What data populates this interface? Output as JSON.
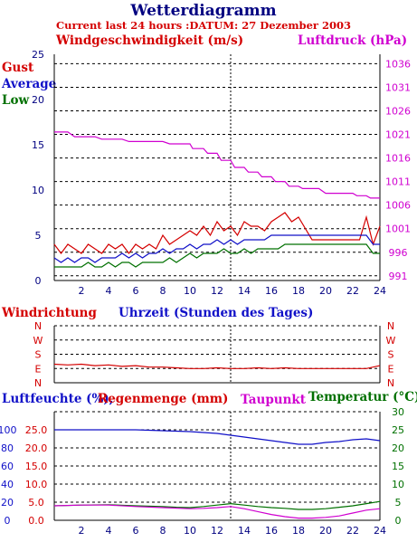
{
  "header": {
    "title": "Wetterdiagramm",
    "subtitle": "Current last 24 hours :DATUM: 27 Dezember 2003"
  },
  "colors": {
    "red": "#d40000",
    "blue": "#1010c8",
    "green": "#007000",
    "magenta": "#d000d0",
    "navy": "#000080"
  },
  "chart_data": [
    {
      "type": "line",
      "name": "wind-pressure",
      "title_left": "Windgeschwindigkeit (m/s)",
      "title_right": "Luftdruck (hPa)",
      "legend": [
        "Gust",
        "Average",
        "Low"
      ],
      "xlim": [
        0,
        24
      ],
      "x_ticks": [
        2,
        4,
        6,
        8,
        10,
        12,
        14,
        16,
        18,
        20,
        22,
        24
      ],
      "ylim_left": [
        0,
        25
      ],
      "y_ticks_left": [
        0,
        5,
        10,
        15,
        20,
        25
      ],
      "ylim_right": [
        990,
        1038
      ],
      "y_ticks_right": [
        991,
        996,
        1001,
        1006,
        1011,
        1016,
        1021,
        1026,
        1031,
        1036
      ],
      "grid": true,
      "series": [
        {
          "name": "Luftdruck",
          "axis": "right",
          "color": "#d000d0",
          "x": [
            0,
            1.0,
            1.5,
            3,
            3.5,
            5,
            5.5,
            8,
            8.5,
            10,
            10.2,
            11,
            11.3,
            12,
            12.3,
            13,
            13.3,
            14,
            14.3,
            15,
            15.3,
            16,
            16.3,
            17,
            17.3,
            18,
            18.3,
            19.5,
            20,
            22,
            22.3,
            23,
            23.3,
            24
          ],
          "y": [
            1021.5,
            1021.5,
            1020.5,
            1020.5,
            1020,
            1020,
            1019.5,
            1019.5,
            1019,
            1019,
            1018,
            1018,
            1017,
            1017,
            1015.5,
            1015.5,
            1014,
            1014,
            1013,
            1013,
            1012,
            1012,
            1011,
            1011,
            1010,
            1010,
            1009.5,
            1009.5,
            1008.5,
            1008.5,
            1008,
            1008,
            1007.5,
            1007.5
          ]
        },
        {
          "name": "Gust",
          "axis": "left",
          "color": "#d40000",
          "x": [
            0,
            0.5,
            1,
            1.5,
            2,
            2.5,
            3,
            3.5,
            4,
            4.5,
            5,
            5.5,
            6,
            6.5,
            7,
            7.5,
            8,
            8.5,
            9,
            9.5,
            10,
            10.5,
            11,
            11.5,
            12,
            12.5,
            13,
            13.5,
            14,
            14.5,
            15,
            15.5,
            16,
            16.5,
            17,
            17.5,
            18,
            19,
            20,
            21,
            22,
            22.5,
            23,
            23.5,
            24
          ],
          "y": [
            4,
            3,
            4,
            3.5,
            3,
            4,
            3.5,
            3,
            4,
            3.5,
            4,
            3,
            4,
            3.5,
            4,
            3.5,
            5,
            4,
            4.5,
            5,
            5.5,
            5,
            6,
            5,
            6.5,
            5.5,
            6,
            5,
            6.5,
            6,
            6,
            5.5,
            6.5,
            7,
            7.5,
            6.5,
            7,
            4.5,
            4.5,
            4.5,
            4.5,
            4.5,
            7,
            4,
            6
          ]
        },
        {
          "name": "Average",
          "axis": "left",
          "color": "#1010c8",
          "x": [
            0,
            0.5,
            1,
            1.5,
            2,
            2.5,
            3,
            3.5,
            4,
            4.5,
            5,
            5.5,
            6,
            6.5,
            7,
            7.5,
            8,
            8.5,
            9,
            9.5,
            10,
            10.5,
            11,
            11.5,
            12,
            12.5,
            13,
            13.5,
            14,
            14.5,
            15,
            15.5,
            16,
            16.5,
            17,
            17.5,
            18,
            19,
            20,
            21,
            22,
            22.5,
            23,
            23.5,
            24
          ],
          "y": [
            2.5,
            2,
            2.5,
            2,
            2.5,
            2.5,
            2,
            2.5,
            2.5,
            2.5,
            3,
            2.5,
            3,
            2.5,
            3,
            3,
            3.5,
            3,
            3.5,
            3.5,
            4,
            3.5,
            4,
            4,
            4.5,
            4,
            4.5,
            4,
            4.5,
            4.5,
            4.5,
            4.5,
            5,
            5,
            5,
            5,
            5,
            5,
            5,
            5,
            5,
            5,
            5,
            4,
            4
          ]
        },
        {
          "name": "Low",
          "axis": "left",
          "color": "#007000",
          "x": [
            0,
            0.5,
            1,
            1.5,
            2,
            2.5,
            3,
            3.5,
            4,
            4.5,
            5,
            5.5,
            6,
            6.5,
            7,
            7.5,
            8,
            8.5,
            9,
            9.5,
            10,
            10.5,
            11,
            11.5,
            12,
            12.5,
            13,
            13.5,
            14,
            14.5,
            15,
            15.5,
            16,
            16.5,
            17,
            17.5,
            18,
            19,
            20,
            21,
            22,
            22.5,
            23,
            23.5,
            24
          ],
          "y": [
            1.5,
            1.5,
            1.5,
            1.5,
            1.5,
            2,
            1.5,
            1.5,
            2,
            1.5,
            2,
            2,
            1.5,
            2,
            2,
            2,
            2,
            2.5,
            2,
            2.5,
            3,
            2.5,
            3,
            3,
            3,
            3.5,
            3,
            3,
            3.5,
            3,
            3.5,
            3.5,
            3.5,
            3.5,
            4,
            4,
            4,
            4,
            4,
            4,
            4,
            4,
            4,
            3,
            3
          ]
        }
      ]
    },
    {
      "type": "line",
      "name": "wind-direction",
      "title_left": "Windrichtung",
      "title_center": "Uhrzeit (Stunden des Tages)",
      "xlim": [
        0,
        24
      ],
      "y_categories": [
        "N",
        "E",
        "S",
        "W",
        "N"
      ],
      "y_ticks_right": [
        "N",
        "W",
        "S",
        "E",
        "N"
      ],
      "grid": true,
      "series": [
        {
          "name": "Windrichtung",
          "color": "#d40000",
          "x": [
            0,
            1,
            2,
            3,
            4,
            5,
            6,
            7,
            8,
            9,
            10,
            11,
            12,
            13,
            14,
            15,
            16,
            17,
            18,
            19,
            20,
            21,
            22,
            23,
            24
          ],
          "y": [
            1.3,
            1.25,
            1.3,
            1.2,
            1.25,
            1.15,
            1.2,
            1.1,
            1.1,
            1.05,
            1.0,
            1.0,
            1.05,
            1.0,
            1.0,
            1.05,
            1.0,
            1.05,
            1.0,
            1.0,
            1.0,
            1.0,
            1.0,
            1.0,
            1.2
          ]
        }
      ]
    },
    {
      "type": "line",
      "name": "humidity-temperature",
      "title_left": "Luftfeuchte (%),",
      "title_left2": "Regenmenge (mm)",
      "title_middle": "Taupunkt",
      "title_right": "Temperatur (°C)",
      "xlim": [
        0,
        24
      ],
      "x_ticks": [
        2,
        4,
        6,
        8,
        10,
        12,
        14,
        16,
        18,
        20,
        22,
        24
      ],
      "y_ticks_humidity": [
        0,
        20,
        40,
        60,
        80,
        100
      ],
      "y_ticks_rain": [
        "0.0",
        "5.0",
        "10.0",
        "15.0",
        "20.0",
        "25.0"
      ],
      "ylim_right": [
        0,
        30
      ],
      "y_ticks_right": [
        0,
        5,
        10,
        15,
        20,
        25,
        30
      ],
      "grid": true,
      "series": [
        {
          "name": "Luftfeuchte",
          "color": "#1010c8",
          "unit_range": [
            0,
            120
          ],
          "x": [
            0,
            2,
            4,
            6,
            8,
            10,
            11,
            12,
            13,
            14,
            15,
            16,
            17,
            18,
            19,
            20,
            21,
            22,
            23,
            24
          ],
          "y": [
            100,
            100,
            100,
            100,
            99,
            98,
            97,
            96,
            94,
            92,
            90,
            88,
            86,
            84,
            84,
            86,
            87,
            89,
            90,
            88
          ]
        },
        {
          "name": "Temperatur",
          "color": "#007000",
          "x": [
            0,
            2,
            4,
            6,
            8,
            9,
            10,
            11,
            12,
            13,
            14,
            15,
            16,
            17,
            18,
            19,
            20,
            21,
            22,
            23,
            24
          ],
          "y": [
            4,
            4.2,
            4.3,
            4,
            3.8,
            3.6,
            3.5,
            3.8,
            4.2,
            4.6,
            4.2,
            3.8,
            3.5,
            3.3,
            3,
            3,
            3.2,
            3.6,
            4,
            4.6,
            5.2
          ]
        },
        {
          "name": "Taupunkt",
          "color": "#d000d0",
          "x": [
            0,
            2,
            4,
            6,
            8,
            10,
            11,
            12,
            13,
            14,
            15,
            16,
            17,
            18,
            19,
            20,
            21,
            22,
            23,
            24
          ],
          "y": [
            4,
            4.2,
            4.2,
            3.8,
            3.5,
            3.2,
            3.3,
            3.5,
            3.8,
            3.2,
            2.4,
            1.6,
            1.0,
            0.6,
            0.6,
            0.8,
            1.2,
            2.0,
            2.8,
            3.2
          ]
        }
      ]
    }
  ]
}
